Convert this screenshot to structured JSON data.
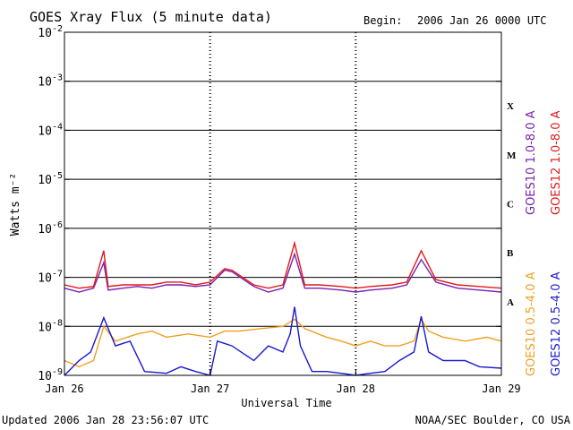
{
  "header": {
    "title": "GOES Xray Flux (5 minute data)",
    "begin_label": "Begin:",
    "begin_value": "2006 Jan 26 0000 UTC"
  },
  "footer": {
    "updated": "Updated 2006 Jan 28 23:56:07 UTC",
    "credit": "NOAA/SEC Boulder, CO USA"
  },
  "chart_data": {
    "type": "line",
    "title": "GOES Xray Flux (5 minute data)",
    "xlabel": "Universal Time",
    "ylabel": "Watts m⁻²",
    "y_scale": "log",
    "ylim": [
      1e-09,
      0.01
    ],
    "xlim": [
      "Jan 26",
      "Jan 29"
    ],
    "x_ticks": [
      "Jan 26",
      "Jan 27",
      "Jan 28",
      "Jan 29"
    ],
    "y_ticks": [
      {
        "base": "10",
        "exp": "-2"
      },
      {
        "base": "10",
        "exp": "-3"
      },
      {
        "base": "10",
        "exp": "-4"
      },
      {
        "base": "10",
        "exp": "-5"
      },
      {
        "base": "10",
        "exp": "-6"
      },
      {
        "base": "10",
        "exp": "-7"
      },
      {
        "base": "10",
        "exp": "-8"
      },
      {
        "base": "10",
        "exp": "-9"
      }
    ],
    "flare_classes": [
      "X",
      "M",
      "C",
      "B",
      "A"
    ],
    "grid": "horizontal at each decade; dotted vertical at day boundaries",
    "series": [
      {
        "name": "GOES10 1.0-8.0 A",
        "color": "#7a1fb0",
        "x": [
          26.0,
          26.1,
          26.2,
          26.27,
          26.3,
          26.4,
          26.5,
          26.6,
          26.7,
          26.8,
          26.9,
          27.0,
          27.1,
          27.15,
          27.3,
          27.4,
          27.5,
          27.58,
          27.65,
          27.75,
          27.9,
          28.0,
          28.1,
          28.25,
          28.35,
          28.45,
          28.55,
          28.7,
          28.85,
          29.0
        ],
        "y": [
          6e-08,
          5e-08,
          6e-08,
          2e-07,
          5.5e-08,
          6e-08,
          6.5e-08,
          6e-08,
          7e-08,
          7e-08,
          6.5e-08,
          7e-08,
          1.4e-07,
          1.3e-07,
          6.5e-08,
          5e-08,
          6e-08,
          3e-07,
          6e-08,
          6e-08,
          5.5e-08,
          5e-08,
          5.5e-08,
          6e-08,
          7e-08,
          2.3e-07,
          8e-08,
          6e-08,
          5.5e-08,
          5e-08
        ]
      },
      {
        "name": "GOES12 1.0-8.0 A",
        "color": "#e01a1a",
        "x": [
          26.0,
          26.1,
          26.2,
          26.27,
          26.3,
          26.4,
          26.5,
          26.6,
          26.7,
          26.8,
          26.9,
          27.0,
          27.1,
          27.15,
          27.3,
          27.4,
          27.5,
          27.58,
          27.65,
          27.75,
          27.9,
          28.0,
          28.1,
          28.25,
          28.35,
          28.45,
          28.55,
          28.7,
          28.85,
          29.0
        ],
        "y": [
          7e-08,
          6e-08,
          6.5e-08,
          3.5e-07,
          6.5e-08,
          7e-08,
          7e-08,
          7e-08,
          8e-08,
          8e-08,
          7e-08,
          8e-08,
          1.5e-07,
          1.4e-07,
          7e-08,
          6e-08,
          7e-08,
          5e-07,
          7e-08,
          7e-08,
          6.5e-08,
          6e-08,
          6.5e-08,
          7e-08,
          8e-08,
          3.5e-07,
          9e-08,
          7e-08,
          6.5e-08,
          6e-08
        ]
      },
      {
        "name": "GOES10 0.5-4.0 A",
        "color": "#f0a020",
        "x": [
          26.0,
          26.1,
          26.2,
          26.27,
          26.35,
          26.5,
          26.6,
          26.7,
          26.85,
          27.0,
          27.1,
          27.2,
          27.35,
          27.5,
          27.58,
          27.65,
          27.8,
          27.9,
          28.0,
          28.1,
          28.2,
          28.3,
          28.4,
          28.45,
          28.5,
          28.6,
          28.75,
          28.9,
          29.0
        ],
        "y": [
          2e-09,
          1.5e-09,
          2e-09,
          1e-08,
          5e-09,
          7e-09,
          8e-09,
          6e-09,
          7e-09,
          6e-09,
          8e-09,
          8e-09,
          9e-09,
          1e-08,
          1.4e-08,
          9e-09,
          6e-09,
          5e-09,
          4e-09,
          5e-09,
          4e-09,
          4e-09,
          5e-09,
          1.4e-08,
          8e-09,
          6e-09,
          5e-09,
          6e-09,
          5e-09
        ]
      },
      {
        "name": "GOES12 0.5-4.0 A",
        "color": "#1a1ad0",
        "x": [
          26.0,
          26.1,
          26.18,
          26.27,
          26.35,
          26.45,
          26.55,
          26.7,
          26.8,
          26.9,
          27.0,
          27.05,
          27.15,
          27.3,
          27.4,
          27.5,
          27.55,
          27.58,
          27.62,
          27.7,
          27.8,
          27.9,
          28.0,
          28.1,
          28.2,
          28.3,
          28.4,
          28.45,
          28.5,
          28.6,
          28.75,
          28.85,
          29.0
        ],
        "y": [
          1e-09,
          2e-09,
          3e-09,
          1.5e-08,
          4e-09,
          5e-09,
          1.2e-09,
          1.1e-09,
          1.5e-09,
          1.2e-09,
          1e-09,
          5e-09,
          4e-09,
          2e-09,
          4e-09,
          3e-09,
          7e-09,
          2.5e-08,
          4e-09,
          1.2e-09,
          1.2e-09,
          1.1e-09,
          1e-09,
          1.1e-09,
          1.2e-09,
          2e-09,
          3e-09,
          1.6e-08,
          3e-09,
          2e-09,
          2e-09,
          1.5e-09,
          1.4e-09
        ]
      }
    ]
  }
}
